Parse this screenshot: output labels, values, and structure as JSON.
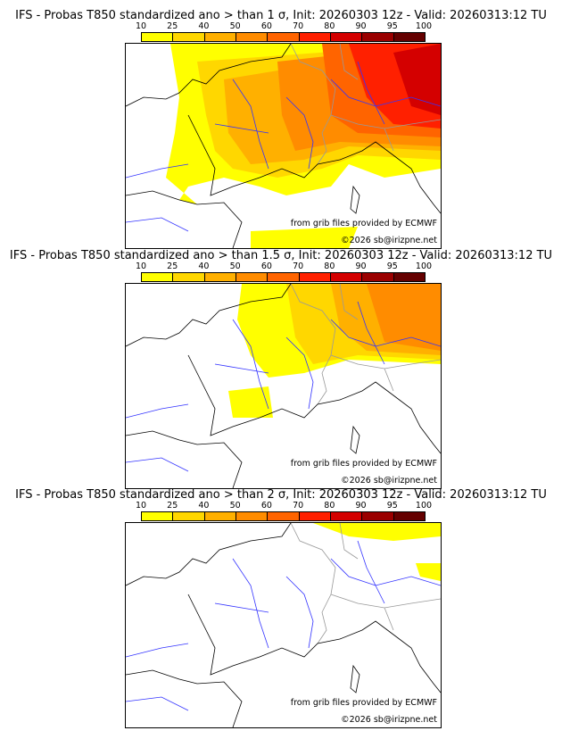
{
  "colorbar": {
    "ticks": [
      "10",
      "25",
      "40",
      "50",
      "60",
      "70",
      "80",
      "90",
      "95",
      "100"
    ],
    "colors": [
      "#ffff00",
      "#ffd700",
      "#ffb000",
      "#ff8c00",
      "#ff6400",
      "#ff2000",
      "#d40000",
      "#9a0000",
      "#640000"
    ]
  },
  "panels": [
    {
      "title": "IFS - Probas T850  standardized ano > than 1 σ, Init: 20260303 12z - Valid: 20260313:12 TU",
      "credit": "from grib files provided by ECMWF",
      "copyright": "©2026 sb@irizpne.net"
    },
    {
      "title": "IFS - Probas T850  standardized ano > than 1.5 σ, Init: 20260303 12z - Valid: 20260313:12 TU",
      "credit": "from grib files provided by ECMWF",
      "copyright": "©2026 sb@irizpne.net"
    },
    {
      "title": "IFS - Probas T850  standardized ano > than 2 σ, Init: 20260303 12z - Valid: 20260313:12 TU",
      "credit": "from grib files provided by ECMWF",
      "copyright": "©2026 sb@irizpne.net"
    }
  ]
}
